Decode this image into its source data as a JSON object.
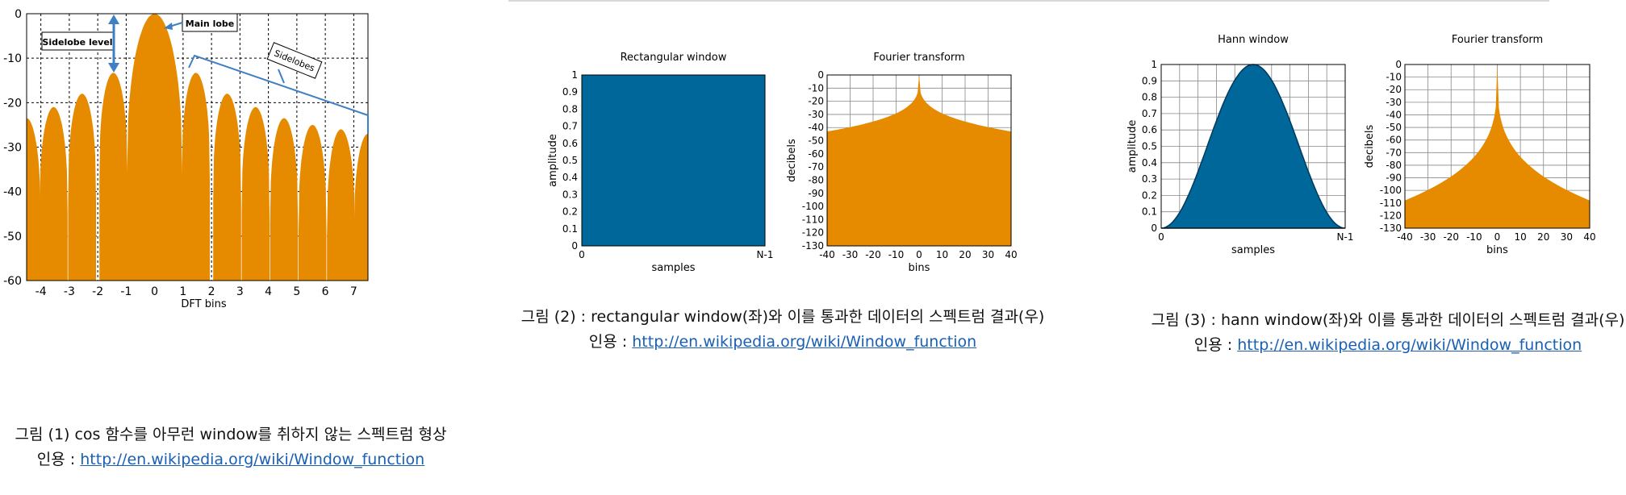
{
  "colors": {
    "orange": "#e68a00",
    "blue": "#00679b",
    "link": "#1a5fb4",
    "annotation": "#3f7fc4"
  },
  "figure1": {
    "chart_data": {
      "type": "area",
      "title": "",
      "xlabel": "DFT bins",
      "ylabel": "",
      "xlim": [
        -4.5,
        7.5
      ],
      "ylim": [
        -60,
        0
      ],
      "xticks": [
        "-4",
        "-3",
        "-2",
        "-1",
        "0",
        "1",
        "2",
        "3",
        "4",
        "5",
        "6",
        "7"
      ],
      "yticks": [
        "0",
        "-10",
        "-20",
        "-30",
        "-40",
        "-50",
        "-60"
      ],
      "grid": true,
      "lobe_peaks": [
        {
          "center": -4.5,
          "peak_db": -23.5
        },
        {
          "center": -3.55,
          "peak_db": -21
        },
        {
          "center": -2.55,
          "peak_db": -18
        },
        {
          "center": -1.45,
          "peak_db": -13.3
        },
        {
          "center": 0,
          "peak_db": 0
        },
        {
          "center": 1.45,
          "peak_db": -13.3
        },
        {
          "center": 2.55,
          "peak_db": -18
        },
        {
          "center": 3.55,
          "peak_db": -21
        },
        {
          "center": 4.55,
          "peak_db": -23.5
        },
        {
          "center": 5.55,
          "peak_db": -25
        },
        {
          "center": 6.55,
          "peak_db": -26
        },
        {
          "center": 7.5,
          "peak_db": -27
        }
      ]
    },
    "annotations": {
      "sidelobe_level": "Sidelobe level",
      "main_lobe": "Main lobe",
      "sidelobes": "Sidelobes"
    },
    "caption": {
      "line1": "그림 (1) cos 함수를 아무런 window를 취하지 않는 스펙트럼 형상",
      "line2_prefix": "인용 : ",
      "link": "http://en.wikipedia.org/wiki/Window_function"
    }
  },
  "figure2": {
    "window": {
      "chart_data": {
        "type": "area",
        "title": "Rectangular window",
        "xlabel": "samples",
        "ylabel": "amplitude",
        "ylim": [
          0,
          1
        ],
        "yticks": [
          "0",
          "0.1",
          "0.2",
          "0.3",
          "0.4",
          "0.5",
          "0.6",
          "0.7",
          "0.8",
          "0.9",
          "1"
        ],
        "xticks": [
          "0",
          "N-1"
        ],
        "shape": "rectangular",
        "value": 1
      }
    },
    "spectrum": {
      "chart_data": {
        "type": "area",
        "title": "Fourier transform",
        "xlabel": "bins",
        "ylabel": "decibels",
        "xlim": [
          -40,
          40
        ],
        "ylim": [
          -130,
          0
        ],
        "xticks": [
          "-40",
          "-30",
          "-20",
          "-10",
          "0",
          "10",
          "20",
          "30",
          "40"
        ],
        "yticks": [
          "0",
          "-10",
          "-20",
          "-30",
          "-40",
          "-50",
          "-60",
          "-70",
          "-80",
          "-90",
          "-100",
          "-110",
          "-120",
          "-130"
        ],
        "envelope": {
          "peak_db": 0,
          "edge_db": -43
        }
      }
    },
    "caption": {
      "line1": "그림 (2) : rectangular window(좌)와 이를 통과한 데이터의 스펙트럼 결과(우)",
      "line2_prefix": "인용 : ",
      "link": "http://en.wikipedia.org/wiki/Window_function"
    }
  },
  "figure3": {
    "window": {
      "chart_data": {
        "type": "area",
        "title": "Hann window",
        "xlabel": "samples",
        "ylabel": "amplitude",
        "ylim": [
          0,
          1
        ],
        "yticks": [
          "0",
          "0.1",
          "0.2",
          "0.3",
          "0.4",
          "0.5",
          "0.6",
          "0.7",
          "0.8",
          "0.9",
          "1"
        ],
        "xticks": [
          "0",
          "N-1"
        ],
        "shape": "hann"
      }
    },
    "spectrum": {
      "chart_data": {
        "type": "area",
        "title": "Fourier transform",
        "xlabel": "bins",
        "ylabel": "decibels",
        "xlim": [
          -40,
          40
        ],
        "ylim": [
          -130,
          0
        ],
        "xticks": [
          "-40",
          "-30",
          "-20",
          "-10",
          "0",
          "10",
          "20",
          "30",
          "40"
        ],
        "yticks": [
          "0",
          "-10",
          "-20",
          "-30",
          "-40",
          "-50",
          "-60",
          "-70",
          "-80",
          "-90",
          "-100",
          "-110",
          "-120",
          "-130"
        ],
        "envelope": {
          "peak_db": 0,
          "edge_db": -108
        }
      }
    },
    "caption": {
      "line1": "그림 (3) : hann window(좌)와 이를 통과한 데이터의 스펙트럼 결과(우)",
      "line2_prefix": "인용 : ",
      "link": "http://en.wikipedia.org/wiki/Window_function"
    }
  }
}
